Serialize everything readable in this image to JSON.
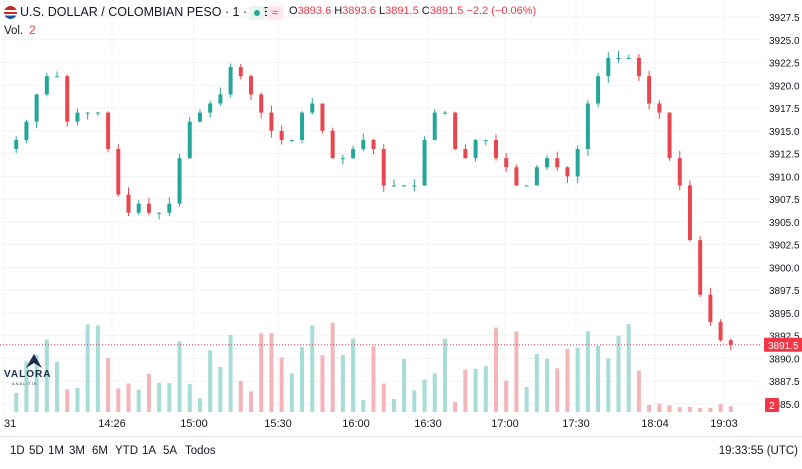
{
  "header": {
    "symbol": "U.S. DOLLAR / COLOMBIAN PESO · 1 · ICE",
    "wave_icon": "≈",
    "ohlc": {
      "O": "3893.6",
      "H": "3893.6",
      "L": "3891.5",
      "C": "3891.5",
      "change": "−2.2 (−0.06%)"
    },
    "volume_label": "Vol.",
    "volume_value": "2"
  },
  "colors": {
    "up": "#26a69a",
    "down": "#e8474f",
    "up_vol": "#a8dcd6",
    "down_vol": "#f4b5b8",
    "price_tag": "#f23645"
  },
  "logo": {
    "name": "VALORA",
    "sub": "ANALITIK"
  },
  "chart_data": {
    "type": "candlestick",
    "title": "",
    "price_axis": {
      "min": 3885,
      "max": 3927.5,
      "ticks": [
        "3927.5",
        "3925.0",
        "3922.5",
        "3920.0",
        "3917.5",
        "3915.0",
        "3912.5",
        "3910.0",
        "3907.5",
        "3905.0",
        "3902.5",
        "3900.0",
        "3897.5",
        "3895.0",
        "3892.5",
        "3890.0",
        "3887.5",
        "3885.0"
      ],
      "last_price": "3891.5"
    },
    "time_axis": {
      "ticks": [
        "31",
        "14:26",
        "15:00",
        "15:30",
        "16:00",
        "16:30",
        "17:00",
        "17:30",
        "18:04",
        "19:03"
      ]
    },
    "volume_last": "2",
    "price_path_approx": [
      3913,
      3914,
      3916,
      3919,
      3921,
      3921,
      3916,
      3917,
      3917,
      3917,
      3913,
      3908,
      3906,
      3907,
      3906,
      3906,
      3907,
      3912,
      3916,
      3917,
      3918,
      3919,
      3922,
      3921,
      3919,
      3917,
      3915,
      3914,
      3914,
      3917,
      3918,
      3915,
      3912,
      3912,
      3913,
      3914,
      3913,
      3909,
      3909,
      3909,
      3909,
      3914,
      3917,
      3917,
      3913,
      3912,
      3914,
      3914,
      3912,
      3911,
      3909,
      3909,
      3911,
      3912,
      3911,
      3910,
      3913,
      3918,
      3921,
      3923,
      3923,
      3923,
      3921,
      3918,
      3917,
      3912,
      3909,
      3903,
      3897,
      3894,
      3892,
      3891.5
    ]
  },
  "bottom": {
    "timeframes": [
      "1D",
      "5D",
      "1M",
      "3M",
      "6M",
      "YTD",
      "1A",
      "5A",
      "Todos"
    ],
    "clock": "19:33:55 (UTC)"
  }
}
